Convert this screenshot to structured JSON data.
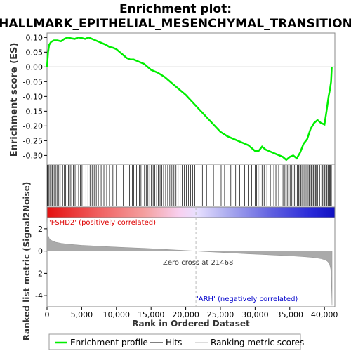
{
  "chart_data": {
    "type": "line",
    "title_line1": "Enrichment plot:",
    "title_line2": "HALLMARK_EPITHELIAL_MESENCHYMAL_TRANSITION",
    "upper_ylabel": "Enrichment score (ES)",
    "lower_ylabel": "Ranked list metric (Signal2Noise)",
    "xlabel": "Rank in Ordered Dataset",
    "xlim": [
      0,
      41500
    ],
    "es_ylim": [
      -0.33,
      0.115
    ],
    "metric_ylim": [
      -5,
      3
    ],
    "x_ticks": [
      0,
      5000,
      10000,
      15000,
      20000,
      25000,
      30000,
      35000,
      40000
    ],
    "x_tick_labels": [
      "0",
      "5,000",
      "10,000",
      "15,000",
      "20,000",
      "25,000",
      "30,000",
      "35,000",
      "40,000"
    ],
    "es_ticks": [
      0.1,
      0.05,
      0.0,
      -0.05,
      -0.1,
      -0.15,
      -0.2,
      -0.25,
      -0.3
    ],
    "es_tick_labels": [
      "0.10",
      "0.05",
      "0.00",
      "-0.05",
      "-0.10",
      "-0.15",
      "-0.20",
      "-0.25",
      "-0.30"
    ],
    "metric_ticks": [
      2,
      0,
      -2,
      -4
    ],
    "metric_tick_labels": [
      "2",
      "0",
      "-2",
      "-4"
    ],
    "series": [
      {
        "name": "Enrichment profile",
        "color": "#00ee00",
        "x": [
          0,
          150,
          300,
          600,
          1000,
          1500,
          2000,
          2500,
          3000,
          3500,
          4000,
          4500,
          5000,
          5500,
          6000,
          6500,
          7000,
          7500,
          8000,
          8500,
          9000,
          9500,
          10000,
          10500,
          11000,
          11500,
          12000,
          12500,
          13000,
          13500,
          14000,
          15000,
          16000,
          17000,
          18000,
          19000,
          20000,
          21000,
          22000,
          23000,
          24000,
          25000,
          26000,
          27000,
          28000,
          29000,
          30000,
          30500,
          31000,
          31500,
          32000,
          33000,
          34000,
          34500,
          35000,
          35500,
          36000,
          36500,
          37000,
          37500,
          38000,
          38500,
          39000,
          39500,
          40000,
          40300,
          40600,
          40800,
          40950,
          41050
        ],
        "y": [
          0.0,
          0.05,
          0.075,
          0.085,
          0.09,
          0.09,
          0.087,
          0.095,
          0.1,
          0.097,
          0.095,
          0.1,
          0.098,
          0.095,
          0.1,
          0.095,
          0.09,
          0.085,
          0.08,
          0.075,
          0.068,
          0.065,
          0.06,
          0.05,
          0.04,
          0.03,
          0.025,
          0.025,
          0.02,
          0.015,
          0.01,
          -0.01,
          -0.02,
          -0.035,
          -0.055,
          -0.075,
          -0.095,
          -0.12,
          -0.145,
          -0.17,
          -0.195,
          -0.22,
          -0.235,
          -0.245,
          -0.255,
          -0.265,
          -0.285,
          -0.285,
          -0.27,
          -0.28,
          -0.285,
          -0.295,
          -0.305,
          -0.315,
          -0.305,
          -0.3,
          -0.31,
          -0.29,
          -0.26,
          -0.245,
          -0.21,
          -0.19,
          -0.18,
          -0.19,
          -0.195,
          -0.15,
          -0.1,
          -0.075,
          -0.05,
          0.0
        ]
      }
    ],
    "hits": {
      "name": "Hits",
      "color": "#000000",
      "positions": [
        60,
        150,
        280,
        420,
        600,
        750,
        900,
        1100,
        1300,
        1500,
        1700,
        1900,
        2250,
        2500,
        2700,
        2900,
        3100,
        3350,
        3550,
        3800,
        4050,
        4300,
        4550,
        4800,
        5050,
        5300,
        5600,
        5900,
        6200,
        6500,
        6800,
        7100,
        7400,
        7800,
        8200,
        8600,
        9000,
        9500,
        10000,
        11000,
        11700,
        11900,
        12100,
        12300,
        12500,
        12700,
        12900,
        13100,
        13300,
        13550,
        13800,
        14050,
        14300,
        14550,
        14800,
        15050,
        15300,
        15550,
        15800,
        16050,
        16300,
        16550,
        16800,
        17100,
        17400,
        17700,
        18000,
        18300,
        18600,
        18900,
        19200,
        19500,
        19800,
        20100,
        20400,
        20700,
        21000,
        21300,
        21900,
        22400,
        23000,
        24000,
        25100,
        25600,
        26500,
        27200,
        27800,
        28500,
        29000,
        29500,
        30000,
        30200,
        30450,
        30700,
        31000,
        31300,
        31700,
        32200,
        32700,
        33000,
        33400,
        33900,
        34100,
        34300,
        34500,
        34700,
        34900,
        35100,
        35300,
        35500,
        35700,
        35900,
        36100,
        36300,
        36450,
        36600,
        36750,
        36900,
        37050,
        37200,
        37350,
        37500,
        37650,
        37800,
        37950,
        38100,
        38250,
        38400,
        38550,
        38700,
        38850,
        39000,
        39300,
        39600,
        39750,
        39900,
        40050,
        40200,
        40350,
        40500,
        40600,
        40700,
        40800,
        40900,
        41000
      ]
    },
    "ranking_metric": {
      "name": "Ranking metric scores",
      "color": "#aaaaaa",
      "x": [
        0,
        30,
        80,
        150,
        300,
        500,
        800,
        1200,
        2000,
        3000,
        5000,
        8000,
        11000,
        14000,
        17000,
        20000,
        21468,
        23000,
        26000,
        29000,
        32000,
        35000,
        37000,
        38500,
        39500,
        40000,
        40400,
        40700,
        40900,
        41000,
        41050,
        41100
      ],
      "y": [
        2.6,
        2.2,
        1.8,
        1.4,
        1.15,
        1.0,
        0.9,
        0.8,
        0.7,
        0.62,
        0.52,
        0.42,
        0.33,
        0.25,
        0.15,
        0.05,
        0.0,
        -0.05,
        -0.15,
        -0.25,
        -0.33,
        -0.42,
        -0.5,
        -0.58,
        -0.68,
        -0.78,
        -0.9,
        -1.1,
        -1.6,
        -2.6,
        -4.0,
        -4.9
      ]
    },
    "zero_cross_x": 21468,
    "positive_label": "'FSHD2' (positively correlated)",
    "negative_label": "'ARH' (negatively correlated)",
    "zero_cross_label": "Zero cross at 21468",
    "colors": {
      "positive_label": "#dd0000",
      "negative_label": "#0000cc",
      "es_line": "#00ee00",
      "heat_positive": "#e82020",
      "heat_negative": "#2020e0"
    },
    "legend": {
      "placement": "bottom",
      "items": [
        "Enrichment profile",
        "Hits",
        "Ranking metric scores"
      ]
    },
    "grid": false
  }
}
